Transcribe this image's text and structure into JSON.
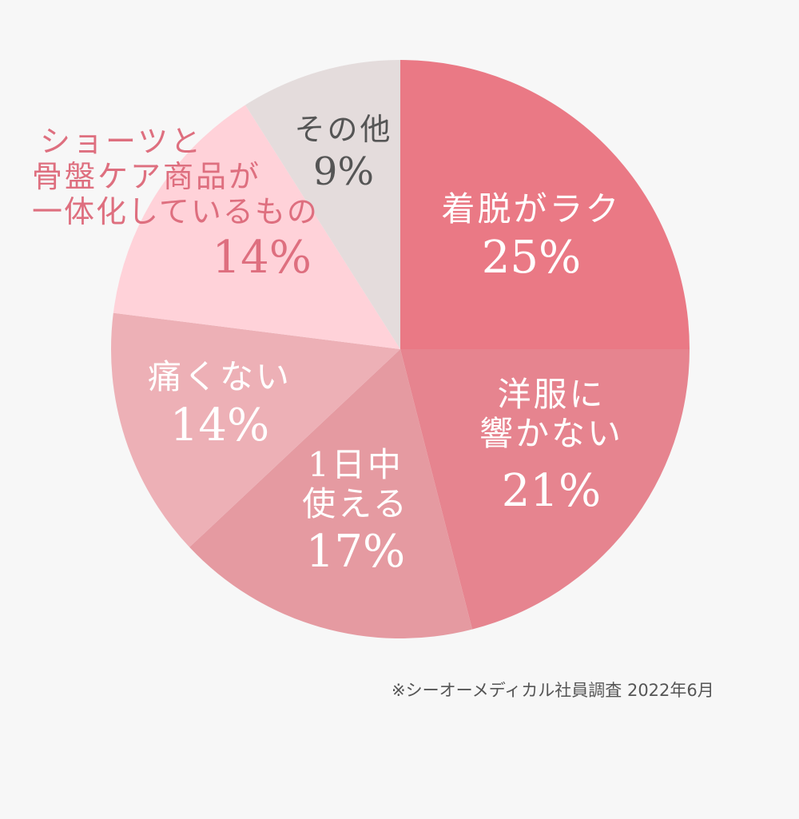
{
  "chart_data": {
    "type": "pie",
    "slices": [
      {
        "label": "着脱がラク",
        "value": 25,
        "display": "25%",
        "color": "#ea7985",
        "label_color": "#ffffff"
      },
      {
        "label": "洋服に響かない",
        "value": 21,
        "display": "21%",
        "color": "#e6848f",
        "label_color": "#ffffff"
      },
      {
        "label": "1日中使える",
        "value": 17,
        "display": "17%",
        "color": "#e59aa1",
        "label_color": "#ffffff"
      },
      {
        "label": "痛くない",
        "value": 14,
        "display": "14%",
        "color": "#edb0b6",
        "label_color": "#ffffff"
      },
      {
        "label": "ショーツと骨盤ケア商品が一体化しているもの",
        "value": 14,
        "display": "14%",
        "color": "#ffd2d9",
        "label_color": "#de6f7f"
      },
      {
        "label": "その他",
        "value": 9,
        "display": "9%",
        "color": "#e4dcdc",
        "label_color": "#555555"
      }
    ],
    "start_angle": "12 o'clock",
    "direction": "clockwise",
    "legend": "none"
  },
  "labels": {
    "s0": {
      "name": "着脱がラク",
      "pct": "25%"
    },
    "s1": {
      "name_line1": "洋服に",
      "name_line2": "響かない",
      "pct": "21%"
    },
    "s2": {
      "name_line1": "1日中",
      "name_line2": "使える",
      "pct": "17%"
    },
    "s3": {
      "name": "痛くない",
      "pct": "14%"
    },
    "s4": {
      "name_line1": "ショーツと",
      "name_line2": "骨盤ケア商品が",
      "name_line3": "一体化しているもの",
      "pct": "14%"
    },
    "s5": {
      "name": "その他",
      "pct": "9%"
    }
  },
  "footnote": "※シーオーメディカル社員調査 2022年6月"
}
